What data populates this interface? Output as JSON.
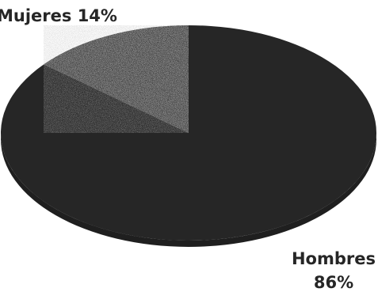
{
  "chart_data": {
    "type": "pie",
    "title": "",
    "series": [
      {
        "categories": [
          "Mujeres",
          "Hombres"
        ],
        "values": [
          14,
          86
        ]
      }
    ],
    "data_labels": [
      {
        "category": "Mujeres",
        "text": "Mujeres 14%"
      },
      {
        "category": "Hombres",
        "line1": "Hombres",
        "line2": "86%"
      }
    ],
    "colors": {
      "Mujeres": "#3a3a3a",
      "Hombres": "#262626"
    },
    "style": "3d-tilted"
  }
}
